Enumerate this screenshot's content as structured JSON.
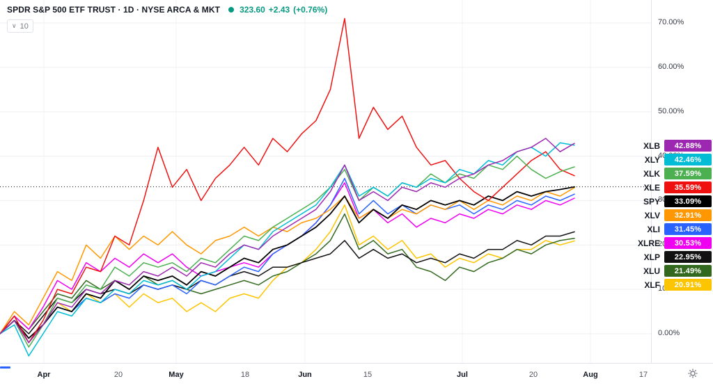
{
  "header": {
    "title": "SPDR S&P 500 ETF TRUST · 1D · NYSE ARCA & MKT",
    "price": "323.60",
    "change": "+2.43",
    "change_pct": "(+0.76%)",
    "value_color": "#089981",
    "indicator_count": "10"
  },
  "icons": {
    "chevron_down": "∨",
    "status_dot_color": "#089981",
    "gear_color": "#787b86",
    "time_axis_marker_color": "#2962ff"
  },
  "chart_data": {
    "type": "line",
    "title": "SPDR S&P 500 ETF TRUST · 1D · NYSE ARCA & MKT",
    "x_unit": "percent of plot width (late March to late July)",
    "ylabel": "% change",
    "ylim": [
      -7,
      74
    ],
    "grid": true,
    "legend_position": "right-scale-badges",
    "y_gridlines": [
      70,
      60,
      50,
      40,
      30,
      20,
      10,
      0
    ],
    "y_axis_labels": [
      "70.00%",
      "60.00%",
      "50.00%",
      "40.00%",
      "30.00%",
      "20.00%",
      "10.00%",
      "0.00%"
    ],
    "x_ticks": [
      {
        "label": "Apr",
        "px": 63,
        "major": true
      },
      {
        "label": "20",
        "px": 170,
        "major": false
      },
      {
        "label": "May",
        "px": 253,
        "major": true
      },
      {
        "label": "18",
        "px": 352,
        "major": false
      },
      {
        "label": "Jun",
        "px": 438,
        "major": true
      },
      {
        "label": "15",
        "px": 528,
        "major": false
      },
      {
        "label": "Jul",
        "px": 664,
        "major": true
      },
      {
        "label": "20",
        "px": 766,
        "major": false
      },
      {
        "label": "Aug",
        "px": 848,
        "major": true
      },
      {
        "label": "17",
        "px": 924,
        "major": false
      }
    ],
    "reference_line": {
      "value": 33.09,
      "color": "#000000",
      "style": "dotted"
    },
    "x": [
      0,
      2.5,
      5,
      7.5,
      10,
      12.5,
      15,
      17.5,
      20,
      22.5,
      25,
      27.5,
      30,
      32.5,
      35,
      37.5,
      40,
      42.5,
      45,
      47.5,
      50,
      52.5,
      55,
      57.5,
      60,
      62.5,
      65,
      67.5,
      70,
      72.5,
      75,
      77.5,
      80,
      82.5,
      85,
      87.5,
      90,
      92.5,
      95,
      97.5,
      100
    ],
    "series": [
      {
        "name": "XLB",
        "color": "#9c27b0",
        "last": "42.88%",
        "values": [
          0,
          3,
          -2,
          2,
          7,
          6,
          10,
          9,
          12,
          11,
          14,
          13,
          15,
          13,
          16,
          15,
          18,
          20,
          19,
          22,
          24,
          26,
          28,
          32,
          38,
          30,
          32,
          30,
          33,
          32,
          34,
          33,
          35,
          36,
          38,
          39,
          41,
          42,
          44,
          41,
          42.88
        ]
      },
      {
        "name": "XLY",
        "color": "#00bcd4",
        "last": "42.46%",
        "values": [
          0,
          2,
          -5,
          0,
          5,
          4,
          8,
          7,
          10,
          9,
          12,
          11,
          12,
          10,
          13,
          14,
          17,
          20,
          19,
          23,
          25,
          27,
          29,
          33,
          38,
          31,
          33,
          31,
          34,
          33,
          35,
          34,
          37,
          36,
          39,
          38,
          41,
          42,
          40,
          43,
          42.46
        ]
      },
      {
        "name": "XLK",
        "color": "#4caf50",
        "last": "37.59%",
        "values": [
          0,
          3,
          -3,
          2,
          8,
          7,
          11,
          10,
          15,
          13,
          16,
          15,
          16,
          14,
          17,
          16,
          19,
          22,
          21,
          24,
          26,
          28,
          30,
          33,
          37,
          30,
          33,
          31,
          34,
          33,
          36,
          34,
          36,
          35,
          38,
          37,
          40,
          37,
          35,
          36.5,
          37.59
        ]
      },
      {
        "name": "XLE",
        "color": "#ef1010",
        "last": "35.59%",
        "values": [
          0,
          4,
          -2,
          3,
          10,
          9,
          15,
          14,
          22,
          20,
          30,
          42,
          33,
          37,
          30,
          35,
          38,
          42,
          38,
          44,
          41,
          45,
          48,
          55,
          71,
          44,
          51,
          46,
          49,
          42,
          38,
          39,
          35,
          32,
          30,
          33,
          36,
          39,
          41,
          37,
          35.59
        ]
      },
      {
        "name": "SPY",
        "color": "#000000",
        "last": "33.09%",
        "values": [
          0,
          3,
          -1,
          2,
          6,
          5,
          9,
          8,
          12,
          10,
          13,
          12,
          13,
          11,
          14,
          13,
          15,
          17,
          16,
          19,
          20,
          22,
          24,
          27,
          31,
          25,
          28,
          26,
          29,
          28,
          30,
          29,
          30,
          29,
          31,
          30,
          32,
          31,
          32,
          32.5,
          33.09
        ]
      },
      {
        "name": "XLV",
        "color": "#ff9800",
        "last": "32.91%",
        "values": [
          0,
          5,
          2,
          8,
          14,
          12,
          20,
          17,
          22,
          19,
          22,
          20,
          23,
          20,
          18,
          21,
          22,
          24,
          22,
          24,
          23,
          25,
          26,
          28,
          31,
          26,
          28,
          26,
          28,
          27,
          29,
          28,
          30,
          28,
          30,
          29,
          31,
          30,
          32,
          31,
          32.91
        ]
      },
      {
        "name": "XLI",
        "color": "#2962ff",
        "last": "31.45%",
        "values": [
          0,
          3,
          -1,
          2,
          6,
          5,
          8,
          7,
          9,
          8,
          11,
          10,
          11,
          9,
          12,
          11,
          13,
          15,
          14,
          18,
          20,
          22,
          25,
          29,
          35,
          27,
          30,
          27,
          29,
          27,
          29,
          28,
          29,
          27,
          29,
          28,
          30,
          29,
          31,
          30,
          31.45
        ]
      },
      {
        "name": "XLRE",
        "color": "#f000f0",
        "last": "30.53%",
        "values": [
          0,
          4,
          1,
          6,
          12,
          10,
          16,
          14,
          17,
          15,
          18,
          16,
          18,
          15,
          13,
          14,
          15,
          16,
          15,
          18,
          20,
          22,
          25,
          29,
          34,
          26,
          28,
          25,
          27,
          24,
          26,
          25,
          27,
          26,
          28,
          27,
          29,
          28,
          30,
          29,
          30.53
        ]
      },
      {
        "name": "XLP",
        "color": "#111111",
        "last": "22.95%",
        "values": [
          0,
          3,
          0,
          4,
          8,
          7,
          10,
          9,
          10,
          9,
          11,
          10,
          11,
          10,
          12,
          11,
          13,
          14,
          13,
          15,
          15,
          16,
          17,
          18,
          21,
          17,
          19,
          17,
          18,
          16,
          17,
          16,
          18,
          17,
          19,
          19,
          21,
          20,
          22,
          22,
          22.95
        ]
      },
      {
        "name": "XLU",
        "color": "#33691e",
        "last": "21.49%",
        "values": [
          0,
          4,
          1,
          5,
          9,
          8,
          12,
          10,
          12,
          10,
          13,
          11,
          12,
          10,
          9,
          10,
          11,
          12,
          11,
          13,
          14,
          16,
          18,
          21,
          27,
          19,
          21,
          18,
          19,
          15,
          14,
          12,
          15,
          14,
          16,
          17,
          19,
          18,
          20,
          21,
          21.49
        ]
      },
      {
        "name": "XLF",
        "color": "#fdc500",
        "last": "20.91%",
        "values": [
          0,
          3,
          -2,
          2,
          7,
          5,
          9,
          7,
          9,
          6,
          9,
          7,
          8,
          5,
          7,
          5,
          8,
          9,
          8,
          12,
          15,
          16,
          19,
          23,
          29,
          20,
          22,
          19,
          21,
          17,
          18,
          15,
          17,
          16,
          18,
          17,
          19,
          19,
          21,
          20,
          20.91
        ]
      }
    ]
  }
}
